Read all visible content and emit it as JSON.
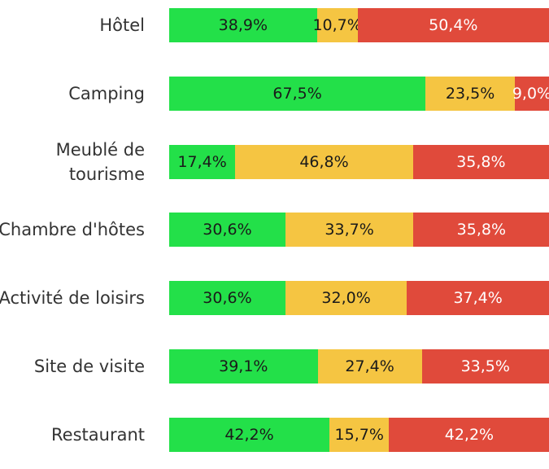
{
  "chart_data": {
    "type": "stacked-bar-horizontal",
    "categories": [
      "Hôtel",
      "Camping",
      "Meublé de tourisme",
      "Chambre d'hôtes",
      "Activité de loisirs",
      "Site de visite",
      "Restaurant"
    ],
    "xlim": [
      0,
      100
    ],
    "series": [
      {
        "color": "#23e049",
        "label_color": "#1a1a1a",
        "values": [
          38.9,
          67.5,
          17.4,
          30.6,
          30.6,
          39.1,
          42.2
        ],
        "value_labels": [
          "38,9%",
          "67,5%",
          "17,4%",
          "30,6%",
          "30,6%",
          "39,1%",
          "42,2%"
        ]
      },
      {
        "color": "#f5c542",
        "label_color": "#1a1a1a",
        "values": [
          10.7,
          23.5,
          46.8,
          33.7,
          32.0,
          27.4,
          15.7
        ],
        "value_labels": [
          "10,7%",
          "23,5%",
          "46,8%",
          "33,7%",
          "32,0%",
          "27,4%",
          "15,7%"
        ]
      },
      {
        "color": "#e04a3b",
        "label_color": "#ffffff",
        "values": [
          50.4,
          9.0,
          35.8,
          35.8,
          37.4,
          33.5,
          42.2
        ],
        "value_labels": [
          "50,4%",
          "9,0%",
          "35,8%",
          "35,8%",
          "37,4%",
          "33,5%",
          "42,2%"
        ]
      }
    ]
  }
}
